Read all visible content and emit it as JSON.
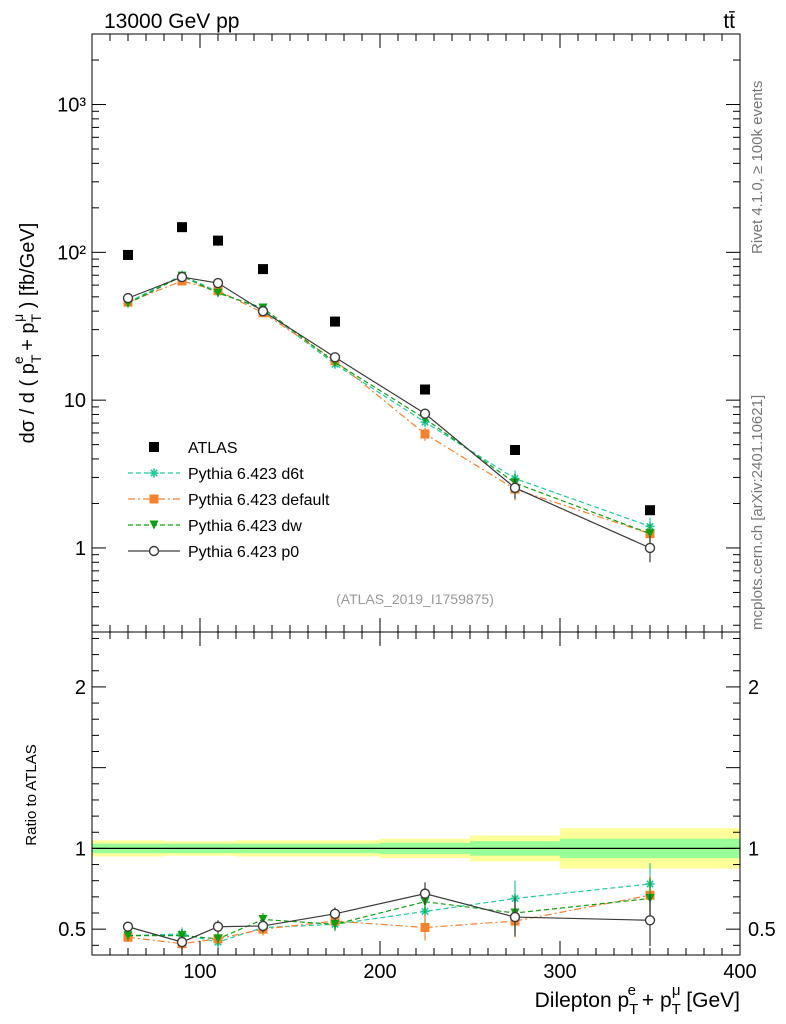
{
  "header": {
    "energy_label": "13000 GeV pp",
    "process_label": "tt̄"
  },
  "side_labels": {
    "rivet": "Rivet 4.1.0, ≥ 100k events",
    "source": "mcplots.cern.ch [arXiv:2401.10621]"
  },
  "watermark": "(ATLAS_2019_I1759875)",
  "colors": {
    "atlas": "#000000",
    "d6t": "#1fc9a0",
    "default": "#f7812d",
    "dw": "#0f9f12",
    "p0": "#3a3a3a",
    "band_outer": "#ffff99",
    "band_inner": "#99ff99"
  },
  "chart_data": [
    {
      "type": "scatter",
      "panel": "main",
      "title": "",
      "xlabel": "Dilepton pT(e) + pT(μ) [GeV]",
      "ylabel": "dσ / d ( pT(e) + pT(μ) ) [fb/GeV]",
      "yscale": "log",
      "xlim": [
        40,
        400
      ],
      "ylim": [
        0.27,
        3000
      ],
      "y_ticks": [
        {
          "value": 1,
          "label": "1"
        },
        {
          "value": 10,
          "label": "10"
        },
        {
          "value": 100,
          "label": "10²"
        },
        {
          "value": 1000,
          "label": "10³"
        }
      ],
      "bins": [
        [
          40,
          80
        ],
        [
          80,
          100
        ],
        [
          100,
          120
        ],
        [
          120,
          150
        ],
        [
          150,
          200
        ],
        [
          200,
          250
        ],
        [
          250,
          300
        ],
        [
          300,
          400
        ]
      ],
      "x": [
        60,
        90,
        110,
        135,
        175,
        225,
        275,
        350
      ],
      "legend_position": "lower-left",
      "series": [
        {
          "key": "atlas",
          "name": "ATLAS",
          "style": "square",
          "values": [
            96,
            148,
            120,
            77,
            34,
            11.8,
            4.6,
            1.8
          ]
        },
        {
          "key": "d6t",
          "name": "Pythia 6.423 d6t",
          "style": "star-dashed",
          "values": [
            46,
            70,
            54,
            41,
            17.5,
            7.1,
            2.95,
            1.4
          ],
          "errors": [
            1.5,
            2,
            2,
            1.5,
            0.8,
            0.5,
            0.4,
            0.2
          ]
        },
        {
          "key": "default",
          "name": "Pythia 6.423 default",
          "style": "square-dashdot",
          "values": [
            46,
            64,
            55,
            39,
            18.5,
            5.9,
            2.5,
            1.25
          ],
          "errors": [
            1.5,
            2,
            2,
            1.5,
            0.8,
            0.6,
            0.4,
            0.2
          ]
        },
        {
          "key": "dw",
          "name": "Pythia 6.423 dw",
          "style": "triangle-dashed",
          "values": [
            45,
            69,
            53,
            42,
            18,
            7.5,
            2.75,
            1.25
          ],
          "errors": [
            1.5,
            2,
            2,
            1.5,
            0.8,
            0.5,
            0.4,
            0.2
          ]
        },
        {
          "key": "p0",
          "name": "Pythia 6.423 p0",
          "style": "circle-solid",
          "values": [
            49,
            68,
            62,
            40,
            19.5,
            8.1,
            2.55,
            1.0
          ],
          "errors": [
            1.5,
            2,
            2,
            1.5,
            0.8,
            0.6,
            0.4,
            0.2
          ]
        }
      ]
    },
    {
      "type": "scatter",
      "panel": "ratio",
      "ylabel": "Ratio to ATLAS",
      "xlabel": "Dilepton pT(e) + pT(μ) [GeV]",
      "xlim": [
        40,
        400
      ],
      "ylim": [
        0.34,
        2.34
      ],
      "x_ticks": [
        100,
        200,
        300,
        400
      ],
      "y_ticks": [
        {
          "value": 0.5,
          "label": "0.5"
        },
        {
          "value": 1,
          "label": "1"
        },
        {
          "value": 2,
          "label": "2"
        }
      ],
      "reference_line": 1,
      "bands": [
        {
          "x": [
            40,
            80
          ],
          "inner": [
            0.97,
            1.03
          ],
          "outer": [
            0.95,
            1.05
          ]
        },
        {
          "x": [
            80,
            100
          ],
          "inner": [
            0.97,
            1.03
          ],
          "outer": [
            0.955,
            1.045
          ]
        },
        {
          "x": [
            100,
            120
          ],
          "inner": [
            0.97,
            1.03
          ],
          "outer": [
            0.955,
            1.045
          ]
        },
        {
          "x": [
            120,
            150
          ],
          "inner": [
            0.97,
            1.03
          ],
          "outer": [
            0.95,
            1.05
          ]
        },
        {
          "x": [
            150,
            200
          ],
          "inner": [
            0.97,
            1.03
          ],
          "outer": [
            0.95,
            1.05
          ]
        },
        {
          "x": [
            200,
            250
          ],
          "inner": [
            0.965,
            1.035
          ],
          "outer": [
            0.94,
            1.06
          ]
        },
        {
          "x": [
            250,
            300
          ],
          "inner": [
            0.955,
            1.045
          ],
          "outer": [
            0.92,
            1.08
          ]
        },
        {
          "x": [
            300,
            400
          ],
          "inner": [
            0.94,
            1.06
          ],
          "outer": [
            0.875,
            1.125
          ]
        }
      ],
      "x": [
        60,
        90,
        110,
        135,
        175,
        225,
        275,
        350
      ],
      "series": [
        {
          "key": "d6t",
          "values": [
            0.46,
            0.47,
            0.42,
            0.51,
            0.53,
            0.61,
            0.69,
            0.78
          ],
          "errors": [
            0.03,
            0.04,
            0.04,
            0.04,
            0.04,
            0.07,
            0.11,
            0.13
          ]
        },
        {
          "key": "default",
          "values": [
            0.45,
            0.41,
            0.44,
            0.5,
            0.55,
            0.51,
            0.55,
            0.71
          ],
          "errors": [
            0.03,
            0.04,
            0.04,
            0.04,
            0.04,
            0.08,
            0.1,
            0.12
          ]
        },
        {
          "key": "dw",
          "values": [
            0.46,
            0.46,
            0.44,
            0.56,
            0.53,
            0.67,
            0.6,
            0.69
          ],
          "errors": [
            0.03,
            0.04,
            0.04,
            0.04,
            0.04,
            0.07,
            0.11,
            0.13
          ]
        },
        {
          "key": "p0",
          "values": [
            0.515,
            0.42,
            0.515,
            0.52,
            0.595,
            0.72,
            0.575,
            0.555
          ],
          "errors": [
            0.03,
            0.04,
            0.04,
            0.04,
            0.04,
            0.07,
            0.12,
            0.16
          ]
        }
      ]
    }
  ]
}
